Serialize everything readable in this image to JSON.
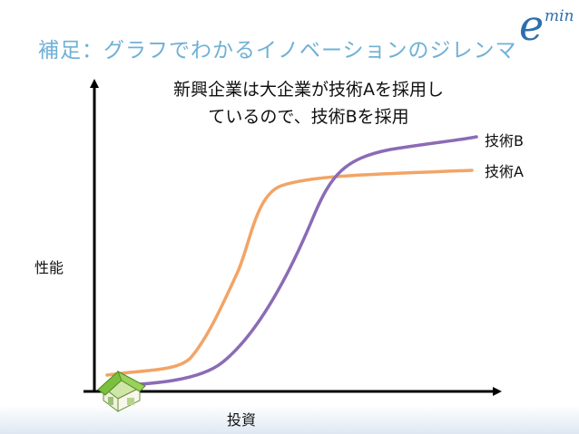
{
  "slide": {
    "title": "補足：グラフでわかるイノベーションのジレンマ",
    "logo": {
      "letter": "e",
      "superscript": "min"
    },
    "annotation_lines": [
      "新興企業は大企業が技術Aを採用し",
      "ているので、技術Bを採用"
    ]
  },
  "chart_data": {
    "type": "line",
    "xlabel": "投資",
    "ylabel": "性能",
    "series": [
      {
        "name": "技術B",
        "color": "#8b6bb5"
      },
      {
        "name": "技術A",
        "color": "#f2a466"
      }
    ]
  },
  "colors": {
    "axis": "#000000",
    "title": "#6fb0d6",
    "logo": "#2d6fae"
  },
  "icons": {
    "start_marker": "house-icon"
  }
}
